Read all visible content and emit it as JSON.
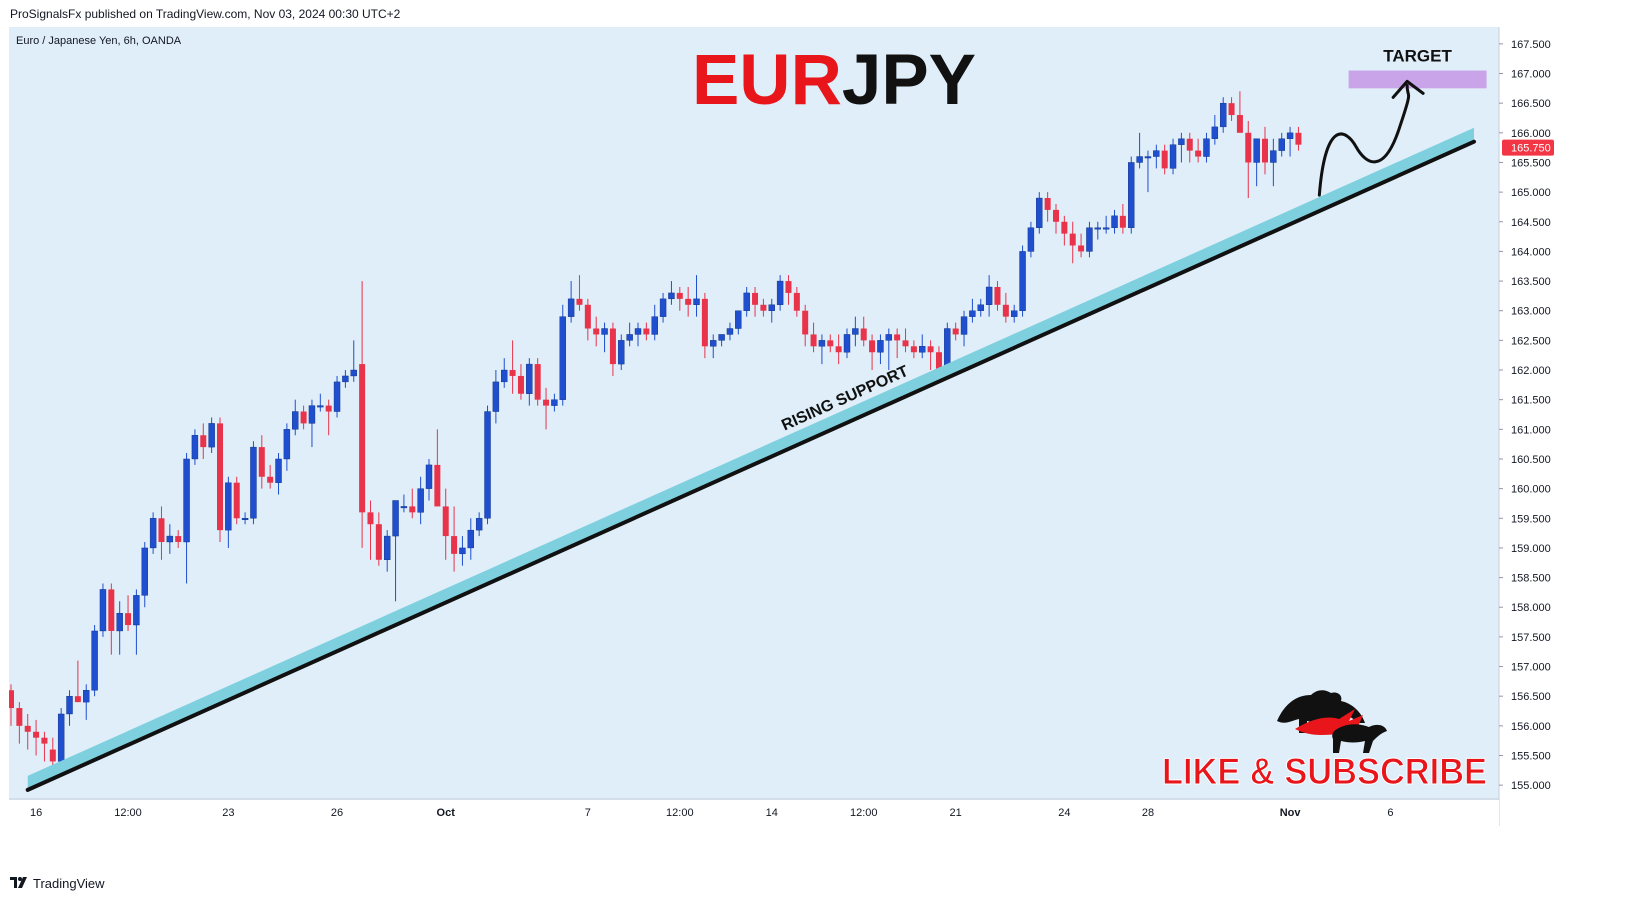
{
  "header": {
    "published": "ProSignalsFx published on TradingView.com, Nov 03, 2024 00:30 UTC+2"
  },
  "footer": {
    "brand": "TradingView",
    "logo_icon": "tradingview-logo-icon"
  },
  "colors": {
    "background": "#dfeef9",
    "bull": "#1f4fcf",
    "bear": "#e8334a",
    "support_band": "#7fd0df",
    "target_box": "#c9a4e8",
    "title_red": "#e8161b",
    "title_black": "#111111",
    "price_label": "#f23645"
  },
  "chart_data": {
    "type": "candlestick",
    "instrument": "Euro / Japanese Yen, 6h, OANDA",
    "title_left": "EUR",
    "title_right": "JPY",
    "ylim": [
      154.8,
      167.7
    ],
    "y_ticks": [
      "155.000",
      "155.500",
      "156.000",
      "156.500",
      "157.000",
      "157.500",
      "158.000",
      "158.500",
      "159.000",
      "159.500",
      "160.000",
      "160.500",
      "161.000",
      "161.500",
      "162.000",
      "162.500",
      "163.000",
      "163.500",
      "164.000",
      "164.500",
      "165.000",
      "165.500",
      "166.000",
      "166.500",
      "167.000",
      "167.500"
    ],
    "x_ticks": [
      {
        "label": "16",
        "index": 3
      },
      {
        "label": "12:00",
        "index": 14
      },
      {
        "label": "23",
        "index": 26
      },
      {
        "label": "26",
        "index": 39
      },
      {
        "label": "Oct",
        "index": 52
      },
      {
        "label": "7",
        "index": 69
      },
      {
        "label": "12:00",
        "index": 80
      },
      {
        "label": "14",
        "index": 91
      },
      {
        "label": "12:00",
        "index": 102
      },
      {
        "label": "21",
        "index": 113
      },
      {
        "label": "24",
        "index": 126
      },
      {
        "label": "28",
        "index": 136
      },
      {
        "label": "Nov",
        "index": 153
      },
      {
        "label": "6",
        "index": 165
      }
    ],
    "last_price": "165.750",
    "support_label": "RISING SUPPORT",
    "target_label": "TARGET",
    "target_zone": [
      166.75,
      167.05
    ],
    "support_line": {
      "start": {
        "index": 2,
        "price": 154.92
      },
      "end": {
        "index": 175,
        "price": 165.85
      }
    },
    "projection": [
      {
        "index": 156.5,
        "price": 164.95
      },
      {
        "index": 158.5,
        "price": 165.9
      },
      {
        "index": 163,
        "price": 165.55
      },
      {
        "index": 166,
        "price": 166.05
      },
      {
        "index": 167,
        "price": 166.8
      }
    ],
    "cta_text": "LIKE & SUBSCRIBE",
    "cta_icon": "bull-bear-logo-icon",
    "candles": [
      [
        156.6,
        156.7,
        156.0,
        156.3
      ],
      [
        156.3,
        156.4,
        155.7,
        156.0
      ],
      [
        156.0,
        156.2,
        155.6,
        155.9
      ],
      [
        155.9,
        156.1,
        155.5,
        155.8
      ],
      [
        155.8,
        155.9,
        155.4,
        155.7
      ],
      [
        155.6,
        155.8,
        155.3,
        155.4
      ],
      [
        155.4,
        156.3,
        155.3,
        156.2
      ],
      [
        156.2,
        156.6,
        156.0,
        156.5
      ],
      [
        156.5,
        157.1,
        156.4,
        156.4
      ],
      [
        156.4,
        156.7,
        156.1,
        156.6
      ],
      [
        156.6,
        157.7,
        156.5,
        157.6
      ],
      [
        157.6,
        158.4,
        157.5,
        158.3
      ],
      [
        158.3,
        158.4,
        157.2,
        157.6
      ],
      [
        157.6,
        158.1,
        157.2,
        157.9
      ],
      [
        157.9,
        158.2,
        157.6,
        157.7
      ],
      [
        157.7,
        158.3,
        157.2,
        158.2
      ],
      [
        158.2,
        159.1,
        158.0,
        159.0
      ],
      [
        159.0,
        159.6,
        158.9,
        159.5
      ],
      [
        159.5,
        159.7,
        158.8,
        159.1
      ],
      [
        159.1,
        159.4,
        158.9,
        159.2
      ],
      [
        159.2,
        159.3,
        159.0,
        159.1
      ],
      [
        159.1,
        160.6,
        158.4,
        160.5
      ],
      [
        160.5,
        161.0,
        160.4,
        160.9
      ],
      [
        160.9,
        161.1,
        160.5,
        160.7
      ],
      [
        160.7,
        161.2,
        160.6,
        161.1
      ],
      [
        161.1,
        161.2,
        159.1,
        159.3
      ],
      [
        159.3,
        160.2,
        159.0,
        160.1
      ],
      [
        160.1,
        160.2,
        159.4,
        159.5
      ],
      [
        159.5,
        159.6,
        159.4,
        159.5
      ],
      [
        159.5,
        160.8,
        159.4,
        160.7
      ],
      [
        160.7,
        160.9,
        160.0,
        160.2
      ],
      [
        160.2,
        160.4,
        160.0,
        160.1
      ],
      [
        160.1,
        160.6,
        159.9,
        160.5
      ],
      [
        160.5,
        161.1,
        160.3,
        161.0
      ],
      [
        161.0,
        161.5,
        160.9,
        161.3
      ],
      [
        161.3,
        161.4,
        161.0,
        161.1
      ],
      [
        161.1,
        161.5,
        160.7,
        161.4
      ],
      [
        161.4,
        161.6,
        161.3,
        161.4
      ],
      [
        161.4,
        161.5,
        160.9,
        161.3
      ],
      [
        161.3,
        161.9,
        161.2,
        161.8
      ],
      [
        161.8,
        162.0,
        161.7,
        161.9
      ],
      [
        161.9,
        162.5,
        161.8,
        162.0
      ],
      [
        162.1,
        163.5,
        159.0,
        159.6
      ],
      [
        159.6,
        159.8,
        158.8,
        159.4
      ],
      [
        159.4,
        159.6,
        158.7,
        158.8
      ],
      [
        158.8,
        159.3,
        158.6,
        159.2
      ],
      [
        159.2,
        159.7,
        158.1,
        159.8
      ],
      [
        159.7,
        159.9,
        159.6,
        159.7
      ],
      [
        159.7,
        160.0,
        159.5,
        159.6
      ],
      [
        159.6,
        160.2,
        159.4,
        160.0
      ],
      [
        160.0,
        160.5,
        159.8,
        160.4
      ],
      [
        160.4,
        161.0,
        159.7,
        159.7
      ],
      [
        159.7,
        160.0,
        158.8,
        159.2
      ],
      [
        159.2,
        159.7,
        158.6,
        158.9
      ],
      [
        158.9,
        159.2,
        158.7,
        159.0
      ],
      [
        159.0,
        159.5,
        158.8,
        159.3
      ],
      [
        159.3,
        159.6,
        159.2,
        159.5
      ],
      [
        159.5,
        161.4,
        159.4,
        161.3
      ],
      [
        161.3,
        162.0,
        161.1,
        161.8
      ],
      [
        161.8,
        162.2,
        161.7,
        162.0
      ],
      [
        162.0,
        162.5,
        161.6,
        161.9
      ],
      [
        161.9,
        162.1,
        161.5,
        161.6
      ],
      [
        161.6,
        162.2,
        161.4,
        162.1
      ],
      [
        162.1,
        162.2,
        161.4,
        161.5
      ],
      [
        161.5,
        161.7,
        161.0,
        161.4
      ],
      [
        161.4,
        161.6,
        161.3,
        161.5
      ],
      [
        161.5,
        163.1,
        161.4,
        162.9
      ],
      [
        162.9,
        163.5,
        162.8,
        163.2
      ],
      [
        163.2,
        163.6,
        163.0,
        163.1
      ],
      [
        163.1,
        163.2,
        162.5,
        162.7
      ],
      [
        162.7,
        162.9,
        162.4,
        162.6
      ],
      [
        162.6,
        162.8,
        162.3,
        162.7
      ],
      [
        162.7,
        162.8,
        161.9,
        162.1
      ],
      [
        162.1,
        162.6,
        162.0,
        162.5
      ],
      [
        162.5,
        162.8,
        162.4,
        162.6
      ],
      [
        162.6,
        162.8,
        162.4,
        162.7
      ],
      [
        162.7,
        162.8,
        162.5,
        162.6
      ],
      [
        162.6,
        163.1,
        162.5,
        162.9
      ],
      [
        162.9,
        163.3,
        162.8,
        163.2
      ],
      [
        163.2,
        163.5,
        163.1,
        163.3
      ],
      [
        163.3,
        163.4,
        163.0,
        163.2
      ],
      [
        163.2,
        163.4,
        162.9,
        163.1
      ],
      [
        163.1,
        163.6,
        162.9,
        163.2
      ],
      [
        163.2,
        163.3,
        162.2,
        162.4
      ],
      [
        162.4,
        162.6,
        162.2,
        162.5
      ],
      [
        162.5,
        162.6,
        162.4,
        162.6
      ],
      [
        162.6,
        162.8,
        162.5,
        162.7
      ],
      [
        162.7,
        163.0,
        162.6,
        163.0
      ],
      [
        163.0,
        163.4,
        162.9,
        163.3
      ],
      [
        163.3,
        163.4,
        162.9,
        163.1
      ],
      [
        163.1,
        163.2,
        162.9,
        163.0
      ],
      [
        163.0,
        163.2,
        162.8,
        163.1
      ],
      [
        163.1,
        163.6,
        163.0,
        163.5
      ],
      [
        163.5,
        163.6,
        163.1,
        163.3
      ],
      [
        163.3,
        163.4,
        162.9,
        163.0
      ],
      [
        163.0,
        163.1,
        162.4,
        162.6
      ],
      [
        162.6,
        162.8,
        162.3,
        162.4
      ],
      [
        162.4,
        162.6,
        162.1,
        162.5
      ],
      [
        162.5,
        162.6,
        162.3,
        162.4
      ],
      [
        162.4,
        162.6,
        162.1,
        162.3
      ],
      [
        162.3,
        162.7,
        162.2,
        162.6
      ],
      [
        162.6,
        162.9,
        162.4,
        162.7
      ],
      [
        162.7,
        162.9,
        162.4,
        162.5
      ],
      [
        162.5,
        162.6,
        162.0,
        162.3
      ],
      [
        162.3,
        162.6,
        162.1,
        162.5
      ],
      [
        162.5,
        162.7,
        162.0,
        162.6
      ],
      [
        162.6,
        162.7,
        162.2,
        162.5
      ],
      [
        162.5,
        162.7,
        162.3,
        162.4
      ],
      [
        162.4,
        162.5,
        162.2,
        162.3
      ],
      [
        162.3,
        162.6,
        162.2,
        162.4
      ],
      [
        162.4,
        162.5,
        162.0,
        162.3
      ],
      [
        162.3,
        162.4,
        161.9,
        162.0
      ],
      [
        162.0,
        162.8,
        161.9,
        162.7
      ],
      [
        162.7,
        162.8,
        162.5,
        162.6
      ],
      [
        162.6,
        163.0,
        162.4,
        162.9
      ],
      [
        162.9,
        163.2,
        162.8,
        163.0
      ],
      [
        163.0,
        163.2,
        162.9,
        163.1
      ],
      [
        163.1,
        163.6,
        162.9,
        163.4
      ],
      [
        163.4,
        163.5,
        163.0,
        163.1
      ],
      [
        163.1,
        163.3,
        162.8,
        162.9
      ],
      [
        162.9,
        163.1,
        162.8,
        163.0
      ],
      [
        163.0,
        164.1,
        162.9,
        164.0
      ],
      [
        164.0,
        164.5,
        163.9,
        164.4
      ],
      [
        164.4,
        165.0,
        164.3,
        164.9
      ],
      [
        164.9,
        165.0,
        164.5,
        164.7
      ],
      [
        164.7,
        164.8,
        164.3,
        164.5
      ],
      [
        164.5,
        164.6,
        164.1,
        164.3
      ],
      [
        164.3,
        164.5,
        163.8,
        164.1
      ],
      [
        164.1,
        164.3,
        163.9,
        164.0
      ],
      [
        164.0,
        164.5,
        163.9,
        164.4
      ],
      [
        164.4,
        164.5,
        164.2,
        164.4
      ],
      [
        164.4,
        164.6,
        164.3,
        164.4
      ],
      [
        164.4,
        164.7,
        164.3,
        164.6
      ],
      [
        164.6,
        164.8,
        164.3,
        164.4
      ],
      [
        164.4,
        165.6,
        164.3,
        165.5
      ],
      [
        165.5,
        166.0,
        165.4,
        165.6
      ],
      [
        165.6,
        165.7,
        165.0,
        165.6
      ],
      [
        165.6,
        165.8,
        165.4,
        165.7
      ],
      [
        165.7,
        165.8,
        165.3,
        165.4
      ],
      [
        165.4,
        165.9,
        165.3,
        165.8
      ],
      [
        165.8,
        166.0,
        165.5,
        165.9
      ],
      [
        165.9,
        166.0,
        165.5,
        165.7
      ],
      [
        165.7,
        165.9,
        165.5,
        165.6
      ],
      [
        165.6,
        166.0,
        165.5,
        165.9
      ],
      [
        165.9,
        166.3,
        165.8,
        166.1
      ],
      [
        166.1,
        166.6,
        166.0,
        166.5
      ],
      [
        166.5,
        166.6,
        166.2,
        166.3
      ],
      [
        166.3,
        166.7,
        166.1,
        166.0
      ],
      [
        166.0,
        166.2,
        164.9,
        165.5
      ],
      [
        165.5,
        165.9,
        165.1,
        165.9
      ],
      [
        165.9,
        166.1,
        165.3,
        165.5
      ],
      [
        165.5,
        165.9,
        165.1,
        165.7
      ],
      [
        165.7,
        166.0,
        165.6,
        165.9
      ],
      [
        165.9,
        166.1,
        165.6,
        166.0
      ],
      [
        166.0,
        166.1,
        165.7,
        165.8
      ]
    ]
  }
}
